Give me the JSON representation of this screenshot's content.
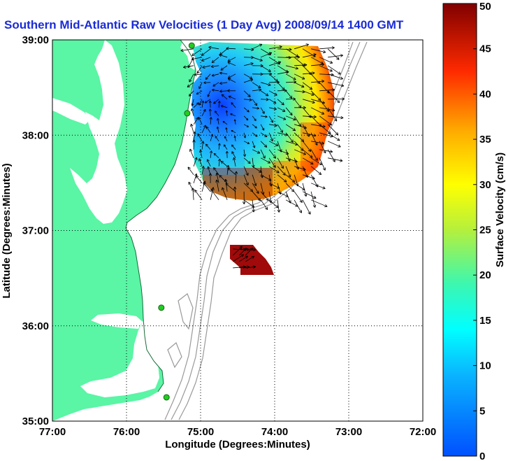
{
  "chart_data": {
    "type": "heatmap",
    "title": "Southern Mid-Atlantic Raw Velocities (1 Day Avg) 2008/09/14 1400 GMT",
    "xlabel": "Longitude (Degrees:Minutes)",
    "ylabel": "Latitude (Degrees:Minutes)",
    "x_ticks": [
      "77:00",
      "76:00",
      "75:00",
      "74:00",
      "73:00",
      "72:00"
    ],
    "y_ticks": [
      "39:00",
      "38:00",
      "37:00",
      "36:00",
      "35:00"
    ],
    "xlim": [
      -77,
      -72
    ],
    "ylim": [
      35,
      39
    ],
    "grid": true,
    "colorbar": {
      "label": "Surface Velocity (cm/s)",
      "range": [
        0,
        50
      ],
      "ticks": [
        "0",
        "5",
        "10",
        "15",
        "20",
        "25",
        "30",
        "35",
        "40",
        "45",
        "50"
      ],
      "colormap": "jet"
    },
    "colors": {
      "land": "#5af5a5",
      "title": "#1a2bd8",
      "stations": "#22cc22",
      "isobaths": "#999999"
    },
    "stations": [
      {
        "lon": -75.12,
        "lat": 38.94
      },
      {
        "lon": -75.18,
        "lat": 38.23
      },
      {
        "lon": -75.53,
        "lat": 36.19
      },
      {
        "lon": -75.46,
        "lat": 35.25
      }
    ],
    "regions": [
      {
        "name": "north",
        "lon_range": [
          -75.15,
          -73.2
        ],
        "lat_range": [
          37.25,
          38.95
        ]
      },
      {
        "name": "south",
        "lon_range": [
          -74.62,
          -74.3
        ],
        "lat_range": [
          36.55,
          36.85
        ]
      }
    ]
  }
}
